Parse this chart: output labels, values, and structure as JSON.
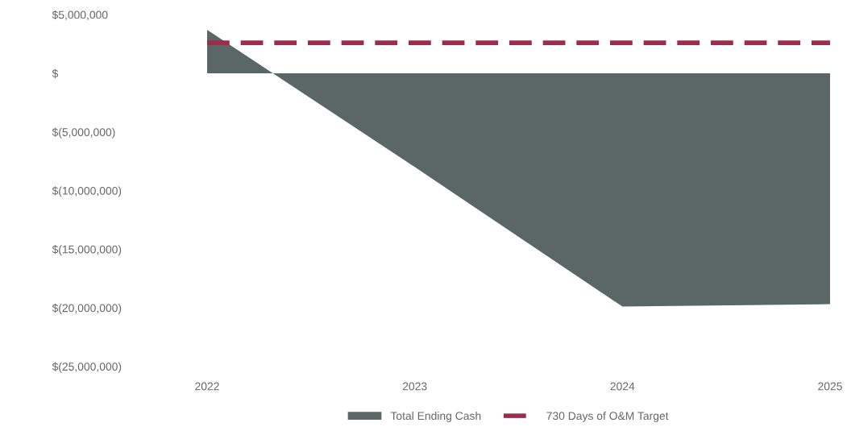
{
  "chart_data": {
    "type": "area",
    "categories": [
      "2022",
      "2023",
      "2024",
      "2025"
    ],
    "series": [
      {
        "name": "Total Ending Cash",
        "color": "#5b6765",
        "values": [
          3700000,
          -8000000,
          -19900000,
          -19700000
        ]
      },
      {
        "name": "730 Days of O&M Target",
        "type": "line",
        "color": "#9b2d4a",
        "line_style": "dashed",
        "values": [
          2600000,
          2600000,
          2600000,
          2600000
        ]
      }
    ],
    "ylim": [
      -25000000,
      5000000
    ],
    "yticks": [
      {
        "value": 5000000,
        "label": "$5,000,000"
      },
      {
        "value": 0,
        "label": "$"
      },
      {
        "value": -5000000,
        "label": "$(5,000,000)"
      },
      {
        "value": -10000000,
        "label": "$(10,000,000)"
      },
      {
        "value": -15000000,
        "label": "$(15,000,000)"
      },
      {
        "value": -20000000,
        "label": "$(20,000,000)"
      },
      {
        "value": -25000000,
        "label": "$(25,000,000)"
      }
    ],
    "grid": false,
    "legend": "bottom"
  }
}
